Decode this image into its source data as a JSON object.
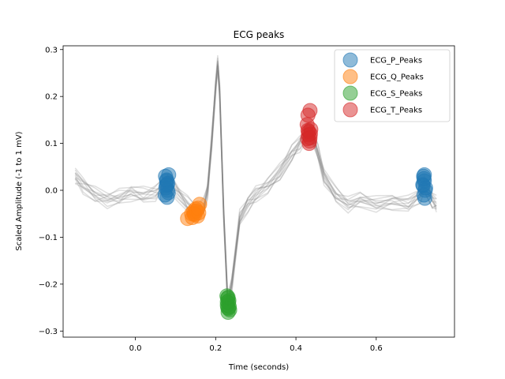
{
  "chart_data": {
    "type": "line",
    "title": "ECG peaks",
    "xlabel": "Time (seconds)",
    "ylabel": "Scaled Amplitude (-1 to 1 mV)",
    "xlim": [
      -0.18,
      0.795
    ],
    "ylim": [
      -0.313,
      0.308
    ],
    "xticks": [
      0.0,
      0.2,
      0.4,
      0.6
    ],
    "xtick_labels": [
      "0.0",
      "0.2",
      "0.4",
      "0.6"
    ],
    "yticks": [
      -0.3,
      -0.2,
      -0.1,
      0.0,
      0.1,
      0.2,
      0.3
    ],
    "ytick_labels": [
      "−0.3",
      "−0.2",
      "−0.1",
      "0.0",
      "0.1",
      "0.2",
      "0.3"
    ],
    "grid": false,
    "legend_position": "top-right",
    "heartbeat_traces": {
      "color": "#808080",
      "count": 12,
      "template_x": [
        -0.15,
        -0.13,
        -0.1,
        -0.07,
        -0.04,
        -0.01,
        0.02,
        0.05,
        0.07,
        0.08,
        0.1,
        0.13,
        0.15,
        0.17,
        0.18,
        0.19,
        0.2,
        0.205,
        0.21,
        0.22,
        0.23,
        0.24,
        0.26,
        0.28,
        0.3,
        0.33,
        0.36,
        0.39,
        0.41,
        0.43,
        0.44,
        0.455,
        0.47,
        0.5,
        0.53,
        0.56,
        0.6,
        0.64,
        0.68,
        0.71,
        0.72,
        0.74,
        0.75
      ],
      "template_y": [
        0.03,
        0.01,
        -0.01,
        -0.02,
        -0.015,
        -0.005,
        -0.01,
        -0.005,
        0.01,
        0.015,
        0.0,
        -0.03,
        -0.045,
        -0.035,
        0.0,
        0.1,
        0.22,
        0.27,
        0.21,
        -0.05,
        -0.24,
        -0.2,
        -0.06,
        -0.03,
        -0.01,
        0.01,
        0.04,
        0.08,
        0.1,
        0.125,
        0.12,
        0.08,
        0.03,
        -0.01,
        -0.03,
        -0.02,
        -0.03,
        -0.025,
        -0.03,
        -0.01,
        0.01,
        -0.02,
        -0.03
      ]
    },
    "series": [
      {
        "name": "ECG_P_Peaks",
        "color": "#1f77b4",
        "points": [
          [
            0.075,
            0.03
          ],
          [
            0.078,
            0.02
          ],
          [
            0.077,
            0.01
          ],
          [
            0.08,
            0.0
          ],
          [
            0.074,
            -0.01
          ],
          [
            0.079,
            -0.015
          ],
          [
            0.083,
            0.033
          ],
          [
            0.081,
            0.015
          ],
          [
            0.076,
            0.005
          ],
          [
            0.078,
            0.022
          ],
          [
            0.082,
            -0.005
          ],
          [
            0.079,
            0.012
          ],
          [
            0.718,
            0.03
          ],
          [
            0.72,
            0.02
          ],
          [
            0.717,
            0.01
          ],
          [
            0.722,
            0.0
          ],
          [
            0.719,
            -0.01
          ],
          [
            0.721,
            -0.017
          ],
          [
            0.72,
            0.033
          ],
          [
            0.716,
            0.012
          ],
          [
            0.723,
            0.005
          ],
          [
            0.719,
            0.025
          ]
        ]
      },
      {
        "name": "ECG_Q_Peaks",
        "color": "#ff7f0e",
        "points": [
          [
            0.13,
            -0.06
          ],
          [
            0.14,
            -0.05
          ],
          [
            0.145,
            -0.045
          ],
          [
            0.15,
            -0.04
          ],
          [
            0.155,
            -0.055
          ],
          [
            0.16,
            -0.03
          ],
          [
            0.148,
            -0.052
          ],
          [
            0.142,
            -0.058
          ],
          [
            0.158,
            -0.048
          ],
          [
            0.152,
            -0.044
          ],
          [
            0.146,
            -0.05
          ],
          [
            0.156,
            -0.038
          ]
        ]
      },
      {
        "name": "ECG_S_Peaks",
        "color": "#2ca02c",
        "points": [
          [
            0.228,
            -0.225
          ],
          [
            0.232,
            -0.24
          ],
          [
            0.23,
            -0.25
          ],
          [
            0.235,
            -0.255
          ],
          [
            0.231,
            -0.26
          ],
          [
            0.229,
            -0.245
          ],
          [
            0.233,
            -0.235
          ],
          [
            0.23,
            -0.23
          ],
          [
            0.234,
            -0.248
          ],
          [
            0.232,
            -0.252
          ],
          [
            0.229,
            -0.238
          ],
          [
            0.231,
            -0.228
          ]
        ]
      },
      {
        "name": "ECG_T_Peaks",
        "color": "#d62728",
        "points": [
          [
            0.435,
            0.17
          ],
          [
            0.43,
            0.16
          ],
          [
            0.428,
            0.14
          ],
          [
            0.432,
            0.125
          ],
          [
            0.437,
            0.13
          ],
          [
            0.429,
            0.11
          ],
          [
            0.433,
            0.1
          ],
          [
            0.436,
            0.12
          ],
          [
            0.431,
            0.118
          ],
          [
            0.434,
            0.105
          ],
          [
            0.43,
            0.128
          ],
          [
            0.435,
            0.112
          ]
        ]
      }
    ]
  }
}
